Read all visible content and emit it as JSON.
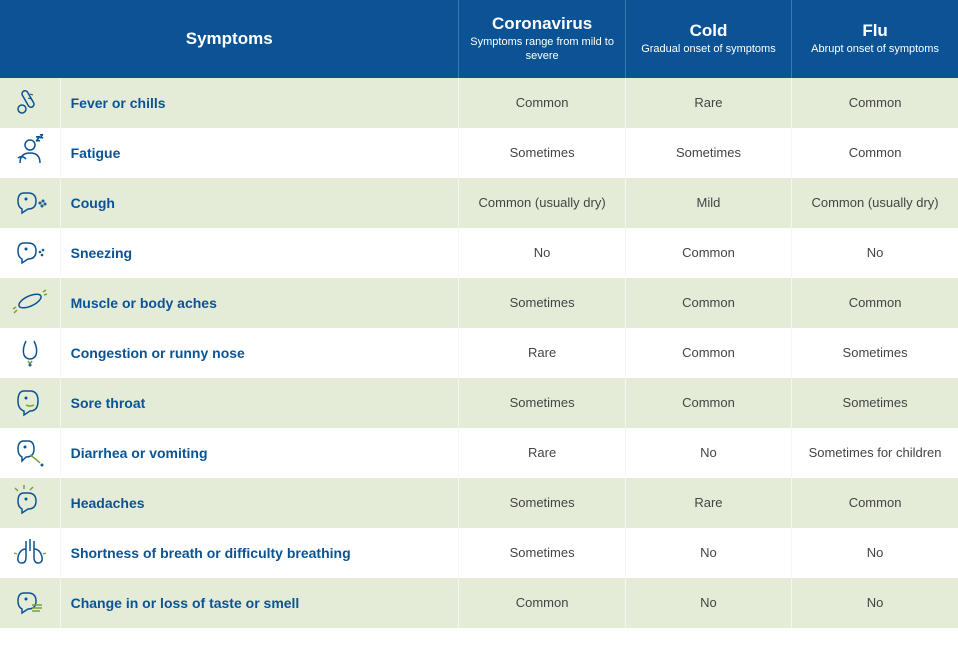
{
  "colors": {
    "header_bg": "#0b5394",
    "header_text": "#ffffff",
    "zebra_a": "#e4ecd8",
    "zebra_b": "#ffffff",
    "symptom_text": "#0b5394",
    "value_text": "#444444",
    "icon_outline": "#0b5394",
    "icon_accent": "#7aa03a"
  },
  "columns": {
    "symptoms": {
      "title": "Symptoms",
      "subtitle": ""
    },
    "coronavirus": {
      "title": "Coronavirus",
      "subtitle": "Symptoms range from\nmild to severe"
    },
    "cold": {
      "title": "Cold",
      "subtitle": "Gradual onset\nof symptoms"
    },
    "flu": {
      "title": "Flu",
      "subtitle": "Abrupt onset\nof symptoms"
    }
  },
  "rows": [
    {
      "icon": "thermometer",
      "symptom": "Fever or chills",
      "coronavirus": "Common",
      "cold": "Rare",
      "flu": "Common"
    },
    {
      "icon": "fatigue",
      "symptom": "Fatigue",
      "coronavirus": "Sometimes",
      "cold": "Sometimes",
      "flu": "Common"
    },
    {
      "icon": "cough",
      "symptom": "Cough",
      "coronavirus": "Common (usually dry)",
      "cold": "Mild",
      "flu": "Common (usually dry)"
    },
    {
      "icon": "sneeze",
      "symptom": "Sneezing",
      "coronavirus": "No",
      "cold": "Common",
      "flu": "No"
    },
    {
      "icon": "muscle",
      "symptom": "Muscle or body aches",
      "coronavirus": "Sometimes",
      "cold": "Common",
      "flu": "Common"
    },
    {
      "icon": "nose",
      "symptom": "Congestion or runny nose",
      "coronavirus": "Rare",
      "cold": "Common",
      "flu": "Sometimes"
    },
    {
      "icon": "throat",
      "symptom": "Sore throat",
      "coronavirus": "Sometimes",
      "cold": "Common",
      "flu": "Sometimes"
    },
    {
      "icon": "vomit",
      "symptom": "Diarrhea or vomiting",
      "coronavirus": "Rare",
      "cold": "No",
      "flu": "Sometimes for children"
    },
    {
      "icon": "headache",
      "symptom": "Headaches",
      "coronavirus": "Sometimes",
      "cold": "Rare",
      "flu": "Common"
    },
    {
      "icon": "lungs",
      "symptom": "Shortness of breath or difficulty breathing",
      "coronavirus": "Sometimes",
      "cold": "No",
      "flu": "No"
    },
    {
      "icon": "taste",
      "symptom": "Change in or loss of taste or smell",
      "coronavirus": "Common",
      "cold": "No",
      "flu": "No"
    }
  ]
}
